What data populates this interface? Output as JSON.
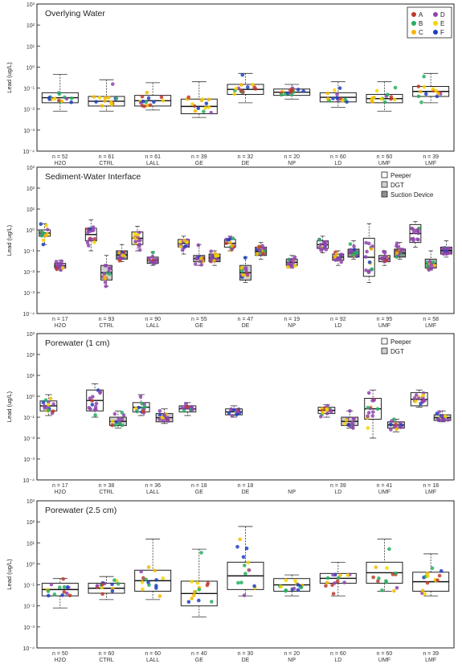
{
  "chart_data": [
    {
      "type": "box",
      "title": "Overlying Water",
      "ylabel": "Lead (ug/L)",
      "yscale": "log",
      "ylim": [
        0.0001,
        1000
      ],
      "yticks": [
        "10⁻⁴",
        "10⁻³",
        "10⁻²",
        "10⁻¹",
        "10⁰",
        "10¹",
        "10²",
        "10³"
      ],
      "categories": [
        "H2O",
        "CTRL",
        "LALL",
        "GE",
        "DE",
        "NP",
        "LD",
        "UMF",
        "LMF"
      ],
      "n": [
        "n = 52",
        "n = 61",
        "n = 61",
        "n = 39",
        "n = 32",
        "n = 20",
        "n = 60",
        "n = 60",
        "n = 39"
      ],
      "legend": {
        "placement": "top-right",
        "entries": [
          {
            "label": "A",
            "color": "#c0392b"
          },
          {
            "label": "B",
            "color": "#27ae60"
          },
          {
            "label": "C",
            "color": "#f5b800"
          },
          {
            "label": "D",
            "color": "#8e44ad"
          },
          {
            "label": "E",
            "color": "#f7d400"
          },
          {
            "label": "F",
            "color": "#1f3fbf"
          }
        ]
      },
      "series": [
        {
          "name": "",
          "boxes": [
            [
              0.008,
              0.02,
              0.06,
              0.45
            ],
            [
              0.008,
              0.014,
              0.04,
              0.25
            ],
            [
              0.009,
              0.014,
              0.045,
              0.18
            ],
            [
              0.004,
              0.006,
              0.03,
              0.2
            ],
            [
              0.02,
              0.05,
              0.15,
              0.5
            ],
            [
              0.03,
              0.045,
              0.09,
              0.15
            ],
            [
              0.012,
              0.022,
              0.06,
              0.2
            ],
            [
              0.008,
              0.02,
              0.05,
              0.2
            ],
            [
              0.02,
              0.04,
              0.12,
              0.5
            ]
          ]
        }
      ]
    },
    {
      "type": "box",
      "title": "Sediment-Water Interface",
      "ylabel": "Lead (ug/L)",
      "yscale": "log",
      "ylim": [
        0.0001,
        1000
      ],
      "yticks": [
        "10⁻⁴",
        "10⁻³",
        "10⁻²",
        "10⁻¹",
        "10⁰",
        "10¹",
        "10²",
        "10³"
      ],
      "categories": [
        "H2O",
        "CTRL",
        "LALL",
        "GE",
        "DE",
        "NP",
        "LD",
        "UMF",
        "LMF"
      ],
      "n": [
        "n = 17",
        "n = 93",
        "n = 90",
        "n = 55",
        "n = 47",
        "n = 19",
        "n = 92",
        "n = 95",
        "n = 58"
      ],
      "legend": {
        "placement": "top-right",
        "entries": [
          {
            "label": "Peeper",
            "color": "#ffffff"
          },
          {
            "label": "DGT",
            "color": "#d0d0d0"
          },
          {
            "label": "Suction Device",
            "color": "#909090"
          }
        ]
      },
      "series": [
        {
          "name": "Peeper",
          "boxes": [
            [
              0.2,
              0.5,
              1.0,
              2.0
            ],
            [
              0.1,
              0.3,
              1.2,
              3.0
            ],
            [
              0.1,
              0.2,
              0.8,
              1.5
            ],
            [
              0.07,
              0.15,
              0.35,
              0.5
            ],
            [
              0.1,
              0.15,
              0.35,
              0.5
            ],
            null,
            [
              0.08,
              0.13,
              0.3,
              0.5
            ],
            [
              0.003,
              0.006,
              0.4,
              2.0
            ],
            [
              0.15,
              0.25,
              1.8,
              2.5
            ]
          ]
        },
        {
          "name": "DGT",
          "boxes": [
            [
              0.012,
              0.015,
              0.025,
              0.035
            ],
            [
              0.002,
              0.004,
              0.02,
              0.06
            ],
            [
              0.02,
              0.025,
              0.05,
              0.09
            ],
            [
              0.02,
              0.03,
              0.06,
              0.2
            ],
            [
              0.003,
              0.004,
              0.02,
              0.05
            ],
            [
              0.015,
              0.02,
              0.04,
              0.06
            ],
            [
              0.02,
              0.035,
              0.07,
              0.1
            ],
            [
              0.02,
              0.03,
              0.06,
              0.1
            ],
            [
              0.012,
              0.015,
              0.04,
              0.1
            ]
          ]
        },
        {
          "name": "Suction Device",
          "boxes": [
            null,
            [
              0.03,
              0.04,
              0.1,
              0.2
            ],
            null,
            [
              0.02,
              0.03,
              0.07,
              0.1
            ],
            [
              0.04,
              0.06,
              0.15,
              0.25
            ],
            null,
            [
              0.04,
              0.05,
              0.12,
              0.3
            ],
            [
              0.04,
              0.05,
              0.12,
              0.25
            ],
            [
              0.05,
              0.07,
              0.15,
              0.3
            ]
          ]
        }
      ]
    },
    {
      "type": "box",
      "title": "Porewater (1 cm)",
      "ylabel": "Lead (ug/L)",
      "yscale": "log",
      "ylim": [
        0.0001,
        1000
      ],
      "yticks": [
        "10⁻⁴",
        "10⁻³",
        "10⁻²",
        "10⁻¹",
        "10⁰",
        "10¹",
        "10²",
        "10³"
      ],
      "categories": [
        "H2O",
        "CTRL",
        "LALL",
        "GE",
        "DE",
        "NP",
        "LD",
        "UMF",
        "LMF"
      ],
      "n": [
        "n = 17",
        "n = 38",
        "n = 36",
        "n = 18",
        "n = 18",
        "",
        "n = 39",
        "n = 41",
        "n = 18"
      ],
      "legend": {
        "placement": "top-right",
        "entries": [
          {
            "label": "Peeper",
            "color": "#ffffff"
          },
          {
            "label": "DGT",
            "color": "#d0d0d0"
          }
        ]
      },
      "series": [
        {
          "name": "Peeper",
          "boxes": [
            [
              0.12,
              0.2,
              0.6,
              1.2
            ],
            [
              0.1,
              0.2,
              2.0,
              4.0
            ],
            [
              0.12,
              0.18,
              0.5,
              1.2
            ],
            [
              0.12,
              0.18,
              0.35,
              0.5
            ],
            [
              0.1,
              0.13,
              0.25,
              0.35
            ],
            null,
            [
              0.1,
              0.15,
              0.3,
              0.4
            ],
            [
              0.01,
              0.08,
              0.8,
              2.0
            ],
            [
              0.3,
              0.35,
              1.5,
              2.0
            ]
          ]
        },
        {
          "name": "DGT",
          "boxes": [
            null,
            [
              0.03,
              0.04,
              0.1,
              0.2
            ],
            [
              0.05,
              0.06,
              0.15,
              0.25
            ],
            null,
            null,
            null,
            [
              0.03,
              0.04,
              0.1,
              0.2
            ],
            [
              0.02,
              0.03,
              0.06,
              0.08
            ],
            [
              0.06,
              0.07,
              0.13,
              0.2
            ]
          ]
        }
      ]
    },
    {
      "type": "box",
      "title": "Porewater (2.5 cm)",
      "ylabel": "Lead (ug/L)",
      "yscale": "log",
      "ylim": [
        0.0001,
        1000
      ],
      "yticks": [
        "10⁻⁴",
        "10⁻³",
        "10⁻²",
        "10⁻¹",
        "10⁰",
        "10¹",
        "10²",
        "10³"
      ],
      "categories": [
        "H2O",
        "CTRL",
        "LALL",
        "GE",
        "DE",
        "NP",
        "LD",
        "UMF",
        "LMF"
      ],
      "n": [
        "n = 50",
        "n = 60",
        "n = 60",
        "n = 40",
        "n = 30",
        "n = 20",
        "n = 60",
        "n = 60",
        "n = 39"
      ],
      "series": [
        {
          "name": "",
          "boxes": [
            [
              0.008,
              0.03,
              0.12,
              0.2
            ],
            [
              0.02,
              0.04,
              0.12,
              0.25
            ],
            [
              0.02,
              0.05,
              0.5,
              15
            ],
            [
              0.003,
              0.01,
              0.15,
              5
            ],
            [
              0.03,
              0.06,
              1.2,
              60
            ],
            [
              0.03,
              0.05,
              0.2,
              0.3
            ],
            [
              0.03,
              0.12,
              0.35,
              1.2
            ],
            [
              0.05,
              0.12,
              1.2,
              15
            ],
            [
              0.03,
              0.05,
              0.4,
              3
            ]
          ]
        }
      ]
    }
  ]
}
